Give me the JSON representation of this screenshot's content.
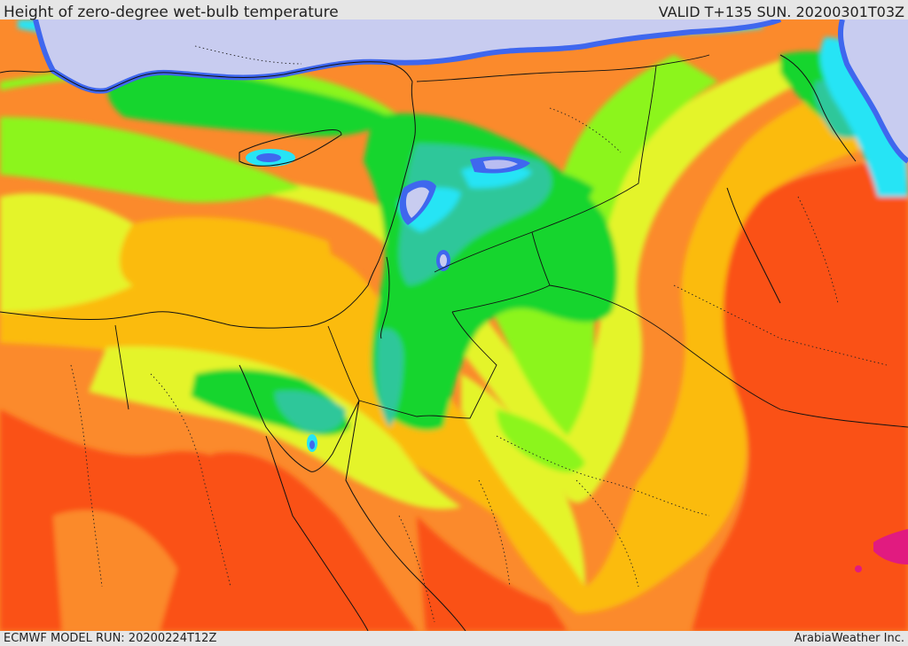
{
  "header": {
    "title": "Height of zero-degree wet-bulb temperature",
    "valid": "VALID T+135 SUN. 20200301T03Z"
  },
  "footer": {
    "model_run": "ECMWF MODEL RUN: 20200224T12Z",
    "credit": "ArabiaWeather Inc."
  },
  "colors": {
    "lavender": "#c8ccf0",
    "blue": "#3f67ee",
    "cyan": "#27e4f5",
    "teal": "#2fc79a",
    "green": "#16d52e",
    "lime": "#8cf51c",
    "yellow": "#e4f42c",
    "amber": "#fbbb0c",
    "orange": "#fb8a2c",
    "red_orange": "#fa5119",
    "magenta": "#e11b80",
    "border": "#111111"
  }
}
